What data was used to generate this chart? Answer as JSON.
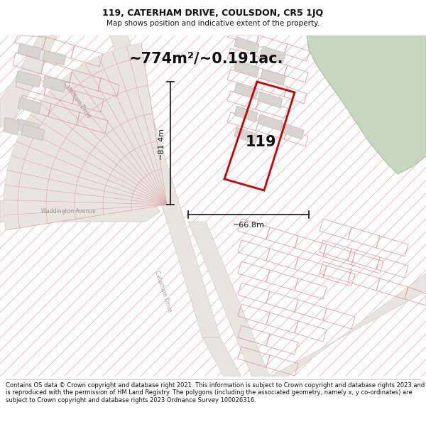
{
  "title_line1": "119, CATERHAM DRIVE, COULSDON, CR5 1JQ",
  "title_line2": "Map shows position and indicative extent of the property.",
  "area_label": "~774m²/~0.191ac.",
  "dim_vertical": "~81.4m",
  "dim_horizontal": "~66.8m",
  "property_number": "119",
  "footer": "Contains OS data © Crown copyright and database right 2021. This information is subject to Crown copyright and database rights 2023 and is reproduced with the permission of HM Land Registry. The polygons (including the associated geometry, namely x, y co-ordinates) are subject to Crown copyright and database rights 2023 Ordnance Survey 100026316.",
  "map_bg": "#f0ece8",
  "hatch_line_color": "#e0a0a0",
  "green_color": "#c8d8c0",
  "green_edge_color": "#a8c0a0",
  "road_color": "#e8e4e0",
  "road_edge": "#d0ccc8",
  "plot_outline_color": "#cc0000",
  "parcel_edge_color": "#e0a0a0",
  "title_bg": "#ffffff",
  "footer_bg": "#ffffff",
  "dim_color": "#111111",
  "road_label_color": "#909090",
  "building_color": "#d8d4d0",
  "building_edge": "#c0bcb8"
}
